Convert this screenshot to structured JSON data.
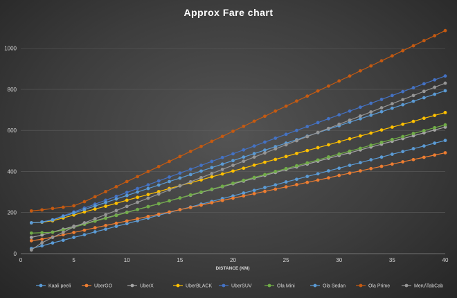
{
  "chart_data": {
    "type": "line",
    "title": "Approx Fare chart",
    "xlabel": "DISTANCE (KM)",
    "ylabel": "",
    "xlim": [
      0,
      40
    ],
    "ylim": [
      0,
      1100
    ],
    "x_ticks": [
      0,
      5,
      10,
      15,
      20,
      25,
      30,
      35,
      40
    ],
    "y_ticks": [
      0,
      200,
      400,
      600,
      800,
      1000
    ],
    "grid": "horizontal",
    "legend_position": "bottom",
    "x": [
      1,
      2,
      3,
      4,
      5,
      6,
      7,
      8,
      9,
      10,
      11,
      12,
      13,
      14,
      15,
      16,
      17,
      18,
      19,
      20,
      21,
      22,
      23,
      24,
      25,
      26,
      27,
      28,
      29,
      30,
      31,
      32,
      33,
      34,
      35,
      36,
      37,
      38,
      39,
      40
    ],
    "series": [
      {
        "name": "Kaali peeli",
        "color": "#5b9bd5",
        "values": [
          25,
          38,
          52,
          65,
          79,
          92,
          106,
          119,
          133,
          146,
          160,
          173,
          187,
          200,
          214,
          227,
          241,
          254,
          268,
          281,
          295,
          308,
          322,
          335,
          349,
          362,
          376,
          389,
          403,
          416,
          430,
          443,
          457,
          470,
          484,
          497,
          511,
          524,
          538,
          551
        ]
      },
      {
        "name": "UberGO",
        "color": "#ed7d31",
        "values": [
          63,
          70,
          81,
          92,
          103,
          114,
          126,
          137,
          148,
          159,
          170,
          181,
          192,
          203,
          214,
          225,
          236,
          248,
          259,
          270,
          281,
          292,
          303,
          314,
          325,
          336,
          347,
          358,
          369,
          381,
          392,
          403,
          414,
          425,
          436,
          447,
          458,
          469,
          480,
          491
        ]
      },
      {
        "name": "UberX",
        "color": "#a5a5a5",
        "values": [
          79,
          91,
          105,
          119,
          133,
          146,
          160,
          174,
          188,
          202,
          215,
          229,
          243,
          257,
          271,
          284,
          298,
          312,
          326,
          340,
          353,
          367,
          381,
          395,
          409,
          422,
          436,
          450,
          464,
          478,
          491,
          505,
          519,
          533,
          547,
          560,
          574,
          588,
          602,
          616
        ]
      },
      {
        "name": "UberBLACK",
        "color": "#ffc000",
        "values": [
          150,
          153,
          160,
          174,
          188,
          203,
          217,
          231,
          245,
          260,
          274,
          288,
          302,
          317,
          331,
          345,
          359,
          374,
          388,
          402,
          416,
          431,
          445,
          459,
          473,
          488,
          502,
          516,
          530,
          545,
          559,
          573,
          587,
          602,
          616,
          630,
          644,
          659,
          673,
          687
        ]
      },
      {
        "name": "UberSUV",
        "color": "#4472c4",
        "values": [
          150,
          154,
          165,
          184,
          203,
          222,
          241,
          260,
          279,
          298,
          317,
          335,
          354,
          373,
          392,
          411,
          430,
          449,
          468,
          486,
          505,
          524,
          543,
          562,
          581,
          600,
          619,
          638,
          657,
          676,
          694,
          713,
          732,
          751,
          770,
          789,
          808,
          827,
          846,
          865
        ]
      },
      {
        "name": "Ola Mini",
        "color": "#70ad47",
        "values": [
          100,
          102,
          104,
          115,
          129,
          143,
          158,
          172,
          186,
          200,
          215,
          229,
          243,
          257,
          271,
          286,
          300,
          314,
          328,
          343,
          357,
          371,
          385,
          400,
          414,
          428,
          442,
          456,
          471,
          485,
          499,
          513,
          528,
          542,
          556,
          570,
          585,
          599,
          613,
          627
        ]
      },
      {
        "name": "Ola Sedan",
        "color": "#5b9bd5",
        "values": [
          150,
          154,
          164,
          181,
          198,
          215,
          232,
          249,
          266,
          283,
          300,
          317,
          334,
          351,
          368,
          385,
          402,
          419,
          436,
          453,
          470,
          487,
          504,
          521,
          538,
          555,
          572,
          589,
          606,
          623,
          640,
          657,
          674,
          691,
          708,
          725,
          742,
          759,
          776,
          793
        ]
      },
      {
        "name": "Ola Prime",
        "color": "#c55a11",
        "values": [
          208,
          213,
          220,
          226,
          233,
          253,
          277,
          302,
          326,
          351,
          375,
          400,
          424,
          449,
          473,
          498,
          522,
          547,
          571,
          596,
          620,
          645,
          669,
          694,
          718,
          743,
          767,
          792,
          816,
          841,
          865,
          890,
          914,
          939,
          963,
          988,
          1012,
          1037,
          1061,
          1086
        ]
      },
      {
        "name": "Meru\\TabCab",
        "color": "#969696",
        "values": [
          18,
          53,
          79,
          104,
          130,
          150,
          170,
          190,
          210,
          230,
          250,
          270,
          290,
          310,
          330,
          350,
          370,
          390,
          410,
          430,
          450,
          470,
          490,
          510,
          530,
          550,
          570,
          590,
          610,
          630,
          650,
          670,
          690,
          710,
          730,
          750,
          770,
          790,
          810,
          830
        ]
      }
    ]
  }
}
